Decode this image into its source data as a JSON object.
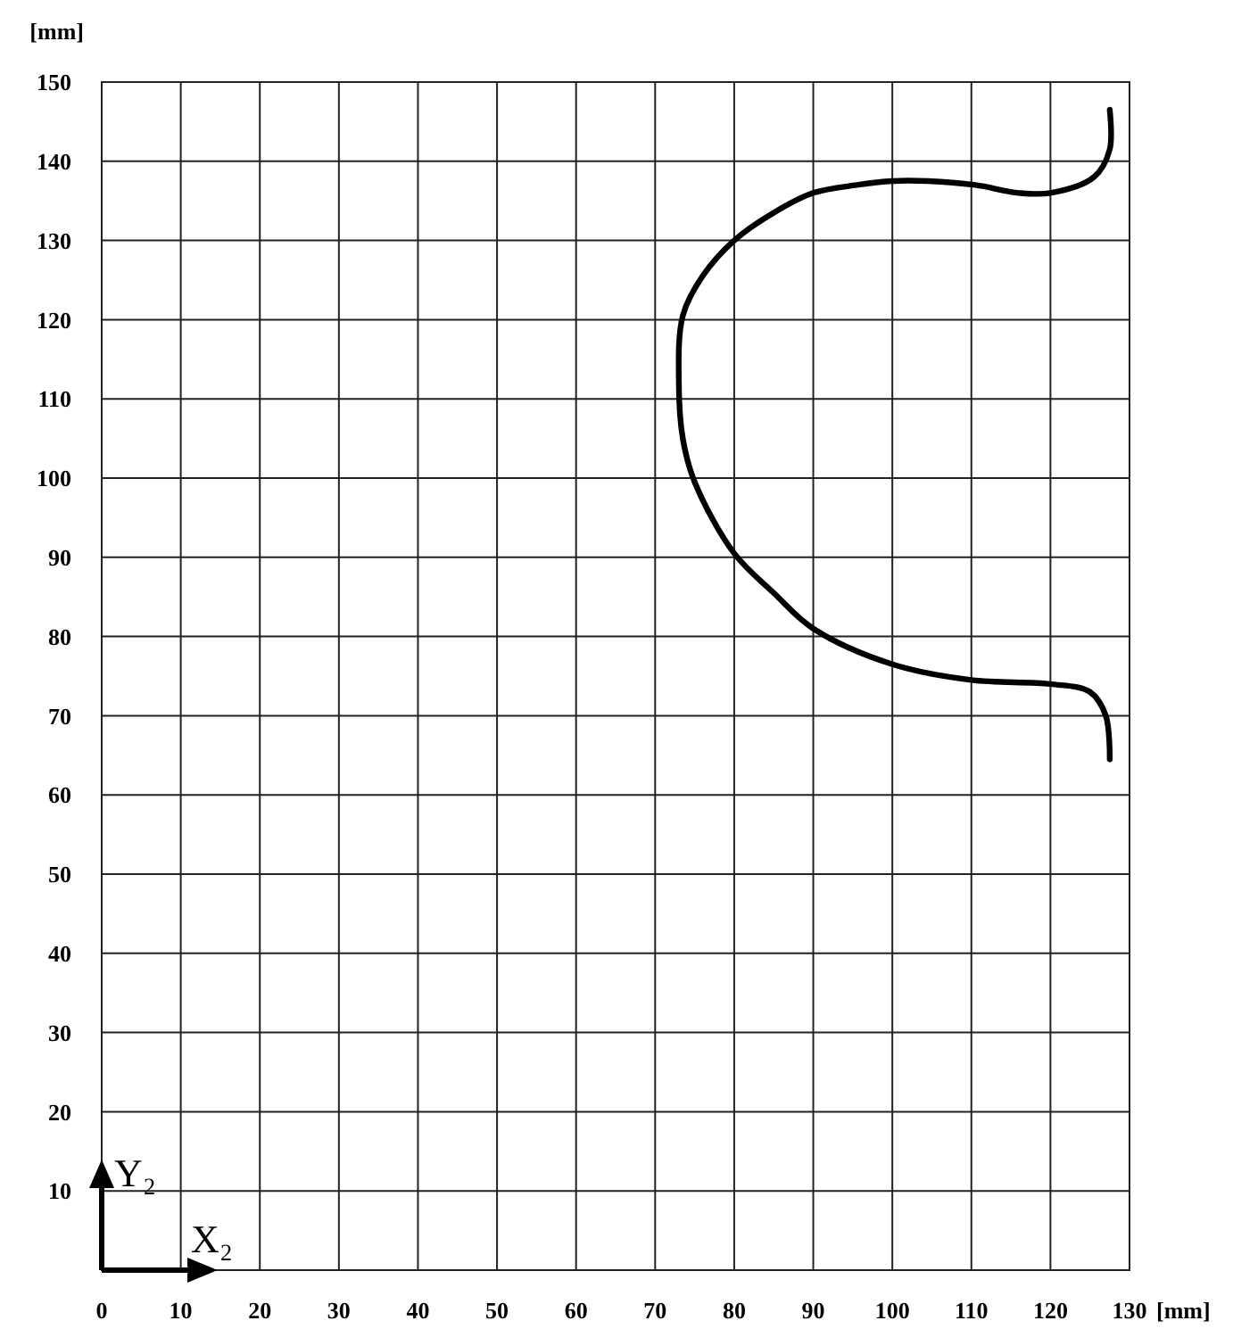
{
  "chart_data": {
    "type": "line",
    "xlabel": "[mm]",
    "ylabel": "[mm]",
    "xlim": [
      0,
      130
    ],
    "ylim": [
      0,
      150
    ],
    "xticks": [
      0,
      10,
      20,
      30,
      40,
      50,
      60,
      70,
      80,
      90,
      100,
      110,
      120,
      130
    ],
    "yticks": [
      10,
      20,
      30,
      40,
      50,
      60,
      70,
      80,
      90,
      100,
      110,
      120,
      130,
      140,
      150
    ],
    "grid": true,
    "line_style": "solid",
    "annotations": [
      "Y₂",
      "X₂"
    ],
    "series": [
      {
        "color": "#000000",
        "x": [
          127.5,
          127.5,
          125.5,
          120,
          116,
          110.5,
          104.5,
          100,
          95.5,
          90,
          85,
          80,
          76,
          73.5,
          73,
          73.5,
          75,
          80,
          85,
          90,
          100,
          110,
          120,
          125,
          127,
          127.5
        ],
        "values": [
          146.5,
          141.5,
          138,
          136,
          136,
          137,
          137.5,
          137.5,
          137,
          136,
          133.5,
          130,
          125.5,
          120.5,
          112,
          105,
          99.5,
          90.5,
          85.5,
          81,
          76.5,
          74.5,
          74,
          73,
          70,
          64.5
        ]
      }
    ]
  }
}
